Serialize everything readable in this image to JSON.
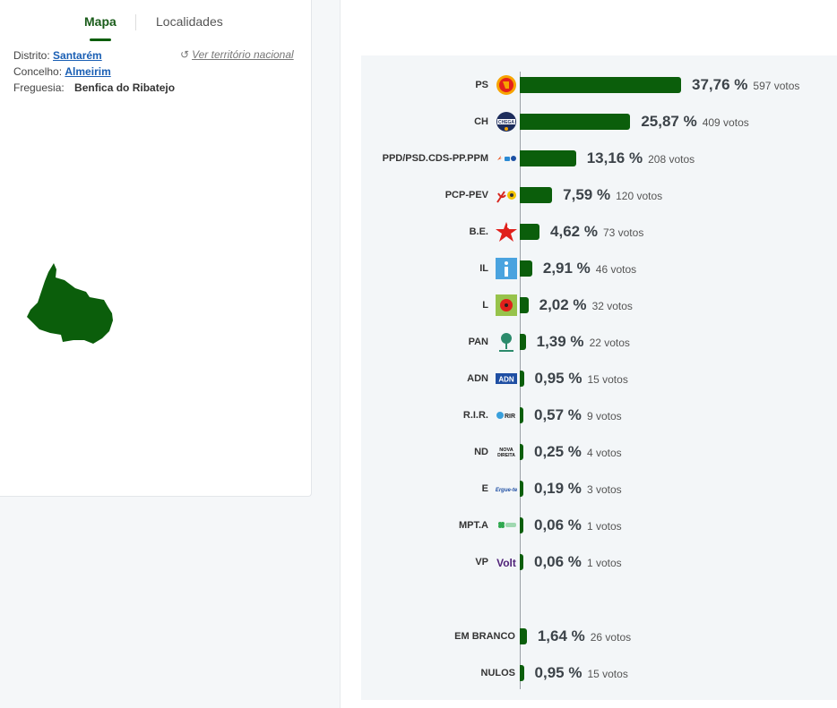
{
  "tabs": {
    "map": "Mapa",
    "locations": "Localidades"
  },
  "location": {
    "district_label": "Distrito:",
    "district": "Santarém",
    "council_label": "Concelho:",
    "council": "Almeirim",
    "parish_label": "Freguesia:",
    "parish": "Benfica do Ribatejo",
    "national_link": "Ver território nacional",
    "refresh_icon": "↺"
  },
  "colors": {
    "bar": "#0b5e0b",
    "map_fill": "#0b5e0b"
  },
  "results": [
    {
      "party": "PS",
      "pct": 37.76,
      "pct_label": "37,76 %",
      "votes_label": "597 votos",
      "logo": "ps-logo"
    },
    {
      "party": "CH",
      "pct": 25.87,
      "pct_label": "25,87 %",
      "votes_label": "409 votos",
      "logo": "ch-logo"
    },
    {
      "party": "PPD/PSD.CDS-PP.PPM",
      "pct": 13.16,
      "pct_label": "13,16 %",
      "votes_label": "208 votos",
      "logo": "ad-logo"
    },
    {
      "party": "PCP-PEV",
      "pct": 7.59,
      "pct_label": "7,59 %",
      "votes_label": "120 votos",
      "logo": "cdu-logo"
    },
    {
      "party": "B.E.",
      "pct": 4.62,
      "pct_label": "4,62 %",
      "votes_label": "73 votos",
      "logo": "be-logo"
    },
    {
      "party": "IL",
      "pct": 2.91,
      "pct_label": "2,91 %",
      "votes_label": "46 votos",
      "logo": "il-logo"
    },
    {
      "party": "L",
      "pct": 2.02,
      "pct_label": "2,02 %",
      "votes_label": "32 votos",
      "logo": "livre-logo"
    },
    {
      "party": "PAN",
      "pct": 1.39,
      "pct_label": "1,39 %",
      "votes_label": "22 votos",
      "logo": "pan-logo"
    },
    {
      "party": "ADN",
      "pct": 0.95,
      "pct_label": "0,95 %",
      "votes_label": "15 votos",
      "logo": "adn-logo",
      "logo_text": "ADN"
    },
    {
      "party": "R.I.R.",
      "pct": 0.57,
      "pct_label": "0,57 %",
      "votes_label": "9 votos",
      "logo": "rir-logo",
      "logo_text": "RIR"
    },
    {
      "party": "ND",
      "pct": 0.25,
      "pct_label": "0,25 %",
      "votes_label": "4 votos",
      "logo": "nd-logo",
      "logo_text": "NOVA DIREITA"
    },
    {
      "party": "E",
      "pct": 0.19,
      "pct_label": "0,19 %",
      "votes_label": "3 votos",
      "logo": "ergue-te-logo",
      "logo_text": "Ergue-te"
    },
    {
      "party": "MPT.A",
      "pct": 0.06,
      "pct_label": "0,06 %",
      "votes_label": "1 votos",
      "logo": "mpt-logo"
    },
    {
      "party": "VP",
      "pct": 0.06,
      "pct_label": "0,06 %",
      "votes_label": "1 votos",
      "logo": "volt-logo",
      "logo_text": "Volt"
    }
  ],
  "extra_results": [
    {
      "party": "EM BRANCO",
      "pct": 1.64,
      "pct_label": "1,64 %",
      "votes_label": "26 votos"
    },
    {
      "party": "NULOS",
      "pct": 0.95,
      "pct_label": "0,95 %",
      "votes_label": "15 votos"
    }
  ]
}
